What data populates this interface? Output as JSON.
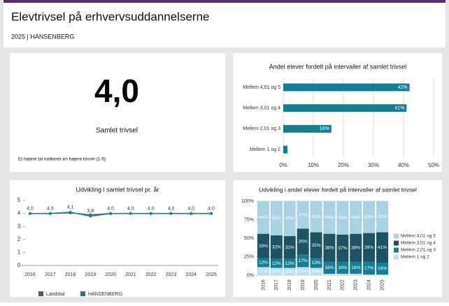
{
  "header": {
    "title": "Elevtrivsel på erhvervsuddannelserne",
    "subtitle": "2025 | HANSENBERG"
  },
  "kpi": {
    "value": "4,0",
    "label": "Samlet trivsel",
    "note": "Et højere tal indikerer en højere trivsel (1-5)"
  },
  "chart_data": [
    {
      "type": "hbar",
      "title": "Andel elever fordelt på intervaller af samlet trivsel",
      "categories": [
        "Mellem 4,01 og 5",
        "Mellem 3,01 og 4",
        "Mellem 2,01 og 3",
        "Mellem 1 og 2"
      ],
      "values": [
        42,
        41,
        16,
        1.4
      ],
      "value_labels": [
        "42%",
        "41%",
        "16%",
        null
      ],
      "color": "#137f96",
      "xlim": [
        0,
        50
      ],
      "xticks": [
        {
          "value": 0,
          "label": "0%"
        },
        {
          "value": 10,
          "label": "10%"
        },
        {
          "value": 20,
          "label": "20%"
        },
        {
          "value": 30,
          "label": "30%"
        },
        {
          "value": 40,
          "label": "40%"
        },
        {
          "value": 50,
          "label": "50%"
        }
      ]
    },
    {
      "type": "line",
      "title": "Udvikling i samlet trivsel pr. år",
      "categories": [
        "2016",
        "2017",
        "2018",
        "2019",
        "2020",
        "2021",
        "2022",
        "2023",
        "2024",
        "2025"
      ],
      "series": [
        {
          "name": "Landstal",
          "color": "#5a5a5a",
          "values": [
            4.0,
            4.0,
            4.05,
            3.9,
            4.0,
            4.0,
            4.0,
            4.0,
            4.0,
            4.0
          ]
        },
        {
          "name": "HANSENBERG",
          "color": "#137f96",
          "values": [
            4.0,
            4.0,
            4.1,
            3.8,
            4.0,
            4.0,
            4.0,
            4.0,
            4.0,
            4.0
          ],
          "value_labels": [
            "4,0",
            "4,0",
            "4,1",
            "3,8",
            "4,0",
            "4,0",
            "4,0",
            "4,0",
            "4,0",
            "4,0"
          ]
        }
      ],
      "ylim": [
        0,
        5
      ],
      "yticks": [
        0,
        1,
        2,
        3,
        4,
        5
      ]
    },
    {
      "type": "stacked",
      "title": "Udvikling i andel elever fordelt på intervaller af samlet trivsel",
      "categories": [
        "2016",
        "2017",
        "2018",
        "2019",
        "2020",
        "2021",
        "2022",
        "2023",
        "2024",
        "2025"
      ],
      "series": [
        {
          "name": "Mellem 4,01 og 5",
          "color": "#a8d3e3",
          "values": [
            44,
            46,
            47,
            37,
            42,
            44,
            45,
            44,
            43,
            42
          ],
          "value_labels": [
            "44%",
            "46%",
            "47%",
            "37%",
            "42%",
            "44%",
            "45%",
            "44%",
            "43%",
            "42%"
          ]
        },
        {
          "name": "Mellem 3,01 og 4",
          "color": "#1c5466",
          "values": [
            33,
            32,
            31,
            35,
            35,
            38,
            37,
            38,
            39,
            41
          ],
          "value_labels": [
            "33%",
            "32%",
            "31%",
            "35%",
            "35%",
            "38%",
            "37%",
            "38%",
            "39%",
            "41%"
          ]
        },
        {
          "name": "Mellem 2,01 og 3",
          "color": "#137f96",
          "values": [
            12,
            12,
            12,
            17,
            13,
            16,
            16,
            16,
            17,
            16
          ],
          "value_labels": [
            "12%",
            "12%",
            "12%",
            "17%",
            "13%",
            "16%",
            "16%",
            "16%",
            "17%",
            "16%"
          ]
        },
        {
          "name": "Mellem 1 og 2",
          "color": "#b9e0ec",
          "values": [
            11,
            10,
            10,
            11,
            10,
            2,
            2,
            2,
            1,
            1
          ],
          "value_labels": [
            "11%",
            "10%",
            "10%",
            "11%",
            "10%",
            null,
            null,
            null,
            null,
            null
          ]
        }
      ],
      "ylim": [
        0,
        100
      ],
      "yticks": [
        {
          "value": 0,
          "label": "0%"
        },
        {
          "value": 25,
          "label": "25%"
        },
        {
          "value": 50,
          "label": "50%"
        },
        {
          "value": 75,
          "label": "75%"
        },
        {
          "value": 100,
          "label": "100%"
        }
      ]
    }
  ]
}
